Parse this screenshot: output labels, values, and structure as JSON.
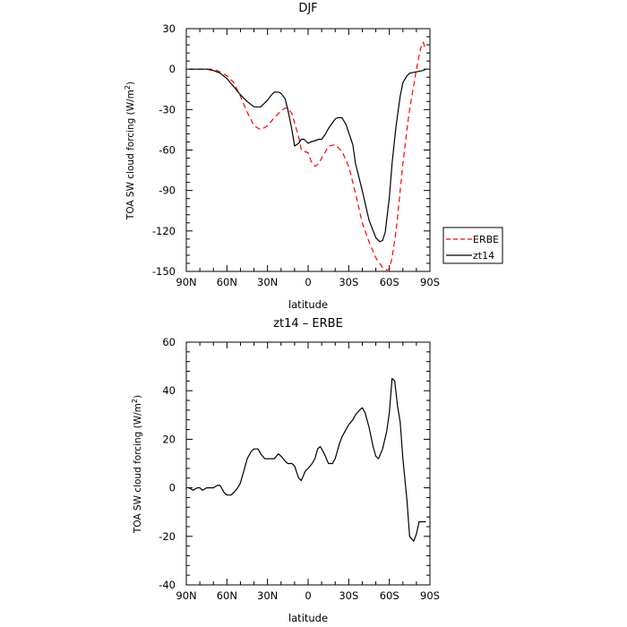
{
  "chart_data": [
    {
      "type": "line",
      "title": "DJF",
      "xlabel": "latitude",
      "ylabel_prefix": "TOA SW cloud forcing (W/m",
      "ylabel_sup": "2",
      "ylabel_suffix": ")",
      "ylim": [
        -150,
        30
      ],
      "xlim": [
        90,
        -90
      ],
      "x_ticks": [
        90,
        60,
        30,
        0,
        -30,
        -60,
        -90
      ],
      "x_tick_labels": [
        "90N",
        "60N",
        "30N",
        "0",
        "30S",
        "60S",
        "90S"
      ],
      "y_ticks": [
        30,
        0,
        -30,
        -60,
        -90,
        -120,
        -150
      ],
      "y_tick_labels": [
        "30",
        "0",
        "-30",
        "-60",
        "-90",
        "-120",
        "-150"
      ],
      "legend_position": "right",
      "series": [
        {
          "name": "ERBE",
          "color": "#ff0000",
          "dash": "dashed",
          "x": [
            88,
            85,
            80,
            75,
            70,
            65,
            60,
            55,
            50,
            45,
            40,
            35,
            30,
            25,
            20,
            17,
            15,
            12,
            10,
            7,
            5,
            3,
            0,
            -2,
            -5,
            -8,
            -10,
            -13,
            -15,
            -20,
            -25,
            -30,
            -35,
            -40,
            -45,
            -50,
            -55,
            -58,
            -60,
            -62,
            -65,
            -68,
            -70,
            -73,
            -75,
            -78,
            -80,
            -83,
            -85,
            -87
          ],
          "y": [
            0,
            0,
            0,
            0,
            0,
            -2,
            -5,
            -10,
            -20,
            -32,
            -42,
            -45,
            -42,
            -36,
            -31,
            -29,
            -29,
            -33,
            -40,
            -50,
            -60,
            -61,
            -62,
            -68,
            -72,
            -70,
            -66,
            -61,
            -57,
            -56,
            -61,
            -72,
            -92,
            -114,
            -128,
            -140,
            -147,
            -149,
            -148,
            -140,
            -120,
            -90,
            -70,
            -45,
            -30,
            -12,
            0,
            15,
            20,
            14
          ]
        },
        {
          "name": "zt14",
          "color": "#000000",
          "dash": "solid",
          "x": [
            88,
            85,
            80,
            75,
            70,
            65,
            60,
            55,
            50,
            45,
            40,
            35,
            30,
            27,
            25,
            22,
            20,
            17,
            15,
            12,
            10,
            7,
            5,
            3,
            0,
            -2,
            -5,
            -8,
            -10,
            -13,
            -15,
            -20,
            -22,
            -25,
            -28,
            -30,
            -33,
            -35,
            -40,
            -45,
            -50,
            -53,
            -55,
            -57,
            -60,
            -62,
            -65,
            -68,
            -70,
            -73,
            -75,
            -80,
            -85,
            -87
          ],
          "y": [
            0,
            0,
            0,
            0,
            -1,
            -3,
            -7,
            -13,
            -19,
            -24,
            -28,
            -28,
            -23,
            -19,
            -17,
            -17,
            -18,
            -22,
            -30,
            -45,
            -57,
            -55,
            -52,
            -52,
            -55,
            -54,
            -53,
            -52,
            -52,
            -48,
            -44,
            -37,
            -36,
            -36,
            -41,
            -47,
            -56,
            -70,
            -90,
            -112,
            -125,
            -128,
            -127,
            -121,
            -95,
            -70,
            -42,
            -20,
            -10,
            -5,
            -3,
            -2,
            -1,
            0
          ]
        }
      ]
    },
    {
      "type": "line",
      "title": "zt14 – ERBE",
      "xlabel": "latitude",
      "ylabel_prefix": "TOA SW cloud forcing (W/m",
      "ylabel_sup": "2",
      "ylabel_suffix": ")",
      "ylim": [
        -40,
        60
      ],
      "xlim": [
        90,
        -90
      ],
      "x_ticks": [
        90,
        60,
        30,
        0,
        -30,
        -60,
        -90
      ],
      "x_tick_labels": [
        "90N",
        "60N",
        "30N",
        "0",
        "30S",
        "60S",
        "90S"
      ],
      "y_ticks": [
        60,
        40,
        20,
        0,
        -20,
        -40
      ],
      "y_tick_labels": [
        "60",
        "40",
        "20",
        "0",
        "-20",
        "-40"
      ],
      "series": [
        {
          "color": "#000000",
          "dash": "solid",
          "x": [
            88,
            85,
            82,
            80,
            78,
            75,
            72,
            70,
            67,
            65,
            62,
            60,
            57,
            55,
            52,
            50,
            47,
            45,
            42,
            40,
            37,
            35,
            32,
            30,
            27,
            25,
            22,
            20,
            17,
            15,
            12,
            10,
            7,
            5,
            2,
            0,
            -3,
            -5,
            -7,
            -9,
            -12,
            -15,
            -18,
            -20,
            -23,
            -25,
            -28,
            -30,
            -33,
            -35,
            -38,
            -40,
            -42,
            -45,
            -48,
            -50,
            -52,
            -55,
            -58,
            -60,
            -62,
            -64,
            -66,
            -68,
            -70,
            -73,
            -75,
            -78,
            -80,
            -82,
            -85,
            -87
          ],
          "y": [
            0,
            -1,
            0,
            0,
            -1,
            0,
            0,
            0,
            1,
            1,
            -2,
            -3,
            -3,
            -2,
            0,
            2,
            8,
            12,
            15,
            16,
            16,
            14,
            12,
            12,
            12,
            12,
            14,
            13,
            11,
            10,
            10,
            9,
            4,
            3,
            7,
            8,
            10,
            12,
            16,
            17,
            14,
            10,
            10,
            12,
            18,
            21,
            24,
            26,
            28,
            30,
            32,
            33,
            31,
            25,
            17,
            13,
            12,
            16,
            23,
            31,
            45,
            44,
            34,
            27,
            12,
            -5,
            -20,
            -22,
            -19,
            -14,
            -14,
            -14
          ]
        }
      ]
    }
  ]
}
